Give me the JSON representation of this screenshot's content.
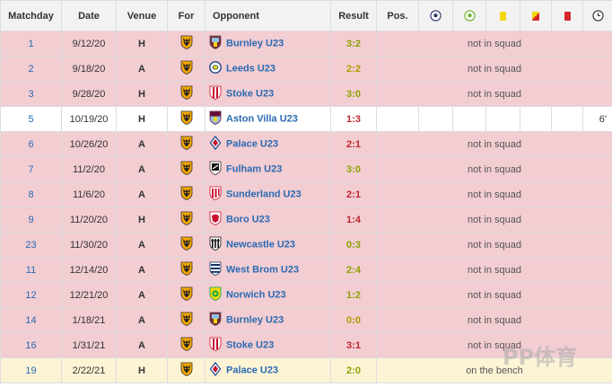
{
  "headers": {
    "matchday": "Matchday",
    "date": "Date",
    "venue": "Venue",
    "for": "For",
    "opponent": "Opponent",
    "result": "Result",
    "pos": "Pos."
  },
  "header_icons": [
    "goals-icon",
    "assists-icon",
    "yellow-card-icon",
    "yellow-red-card-icon",
    "red-card-icon",
    "minutes-clock-icon"
  ],
  "colors": {
    "row_not_in_squad": "#f2cdd2",
    "row_played": "#ffffff",
    "row_bench": "#fdf4d6",
    "link": "#2a6ab3",
    "result_win": "#8ba300",
    "result_draw": "#b49a00",
    "result_loss": "#c0262d"
  },
  "matches": [
    {
      "matchday": "1",
      "date": "9/12/20",
      "venue": "H",
      "for_crest": "wolves-crest",
      "opponent": "Burnley U23",
      "opp_crest": "burnley-crest",
      "result": "3:2",
      "outcome": "win",
      "status": "red",
      "note": "not in squad"
    },
    {
      "matchday": "2",
      "date": "9/18/20",
      "venue": "A",
      "for_crest": "wolves-crest",
      "opponent": "Leeds U23",
      "opp_crest": "leeds-crest",
      "result": "2:2",
      "outcome": "draw",
      "status": "red",
      "note": "not in squad"
    },
    {
      "matchday": "3",
      "date": "9/28/20",
      "venue": "H",
      "for_crest": "wolves-crest",
      "opponent": "Stoke U23",
      "opp_crest": "stoke-crest",
      "result": "3:0",
      "outcome": "win",
      "status": "red",
      "note": "not in squad"
    },
    {
      "matchday": "5",
      "date": "10/19/20",
      "venue": "H",
      "for_crest": "wolves-crest",
      "opponent": "Aston Villa U23",
      "opp_crest": "villa-crest",
      "result": "1:3",
      "outcome": "loss",
      "status": "played",
      "minutes": "6'"
    },
    {
      "matchday": "6",
      "date": "10/26/20",
      "venue": "A",
      "for_crest": "wolves-crest",
      "opponent": "Palace U23",
      "opp_crest": "palace-crest",
      "result": "2:1",
      "outcome": "loss",
      "status": "red",
      "note": "not in squad"
    },
    {
      "matchday": "7",
      "date": "11/2/20",
      "venue": "A",
      "for_crest": "wolves-crest",
      "opponent": "Fulham U23",
      "opp_crest": "fulham-crest",
      "result": "3:0",
      "outcome": "win",
      "status": "red",
      "note": "not in squad"
    },
    {
      "matchday": "8",
      "date": "11/6/20",
      "venue": "A",
      "for_crest": "wolves-crest",
      "opponent": "Sunderland U23",
      "opp_crest": "sunderland-crest",
      "result": "2:1",
      "outcome": "loss",
      "status": "red",
      "note": "not in squad"
    },
    {
      "matchday": "9",
      "date": "11/20/20",
      "venue": "H",
      "for_crest": "wolves-crest",
      "opponent": "Boro U23",
      "opp_crest": "boro-crest",
      "result": "1:4",
      "outcome": "loss",
      "status": "red",
      "note": "not in squad"
    },
    {
      "matchday": "23",
      "date": "11/30/20",
      "venue": "A",
      "for_crest": "wolves-crest",
      "opponent": "Newcastle U23",
      "opp_crest": "newcastle-crest",
      "result": "0:3",
      "outcome": "win",
      "status": "red",
      "note": "not in squad"
    },
    {
      "matchday": "11",
      "date": "12/14/20",
      "venue": "A",
      "for_crest": "wolves-crest",
      "opponent": "West Brom U23",
      "opp_crest": "westbrom-crest",
      "result": "2:4",
      "outcome": "win",
      "status": "red",
      "note": "not in squad"
    },
    {
      "matchday": "12",
      "date": "12/21/20",
      "venue": "A",
      "for_crest": "wolves-crest",
      "opponent": "Norwich U23",
      "opp_crest": "norwich-crest",
      "result": "1:2",
      "outcome": "win",
      "status": "red",
      "note": "not in squad"
    },
    {
      "matchday": "14",
      "date": "1/18/21",
      "venue": "A",
      "for_crest": "wolves-crest",
      "opponent": "Burnley U23",
      "opp_crest": "burnley-crest",
      "result": "0:0",
      "outcome": "draw",
      "status": "red",
      "note": "not in squad"
    },
    {
      "matchday": "16",
      "date": "1/31/21",
      "venue": "A",
      "for_crest": "wolves-crest",
      "opponent": "Stoke U23",
      "opp_crest": "stoke-crest",
      "result": "3:1",
      "outcome": "loss",
      "status": "red",
      "note": "not in squad"
    },
    {
      "matchday": "19",
      "date": "2/22/21",
      "venue": "H",
      "for_crest": "wolves-crest",
      "opponent": "Palace U23",
      "opp_crest": "palace-crest",
      "result": "2:0",
      "outcome": "win",
      "status": "bench",
      "note": "on the bench"
    }
  ],
  "watermark": "PP体育"
}
